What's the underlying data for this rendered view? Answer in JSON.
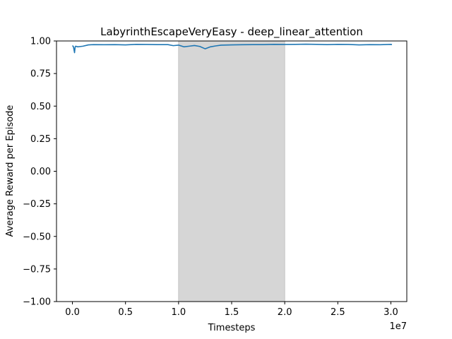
{
  "chart_data": {
    "type": "line",
    "title": "LabyrinthEscapeVeryEasy - deep_linear_attention",
    "xlabel": "Timesteps",
    "ylabel": "Average Reward per Episode",
    "x_offset_label": "1e7",
    "xlim": [
      -0.15,
      3.15
    ],
    "ylim": [
      -1.0,
      1.0
    ],
    "x_ticks": [
      0.0,
      0.5,
      1.0,
      1.5,
      2.0,
      2.5,
      3.0
    ],
    "x_tick_labels": [
      "0.0",
      "0.5",
      "1.0",
      "1.5",
      "2.0",
      "2.5",
      "3.0"
    ],
    "y_ticks": [
      -1.0,
      -0.75,
      -0.5,
      -0.25,
      0.0,
      0.25,
      0.5,
      0.75,
      1.0
    ],
    "y_tick_labels": [
      "−1.00",
      "−0.75",
      "−0.50",
      "−0.25",
      "0.00",
      "0.25",
      "0.50",
      "0.75",
      "1.00"
    ],
    "shaded_region": {
      "x": [
        1.0,
        2.0
      ],
      "color": "#d6d6d6"
    },
    "grid": false,
    "series": [
      {
        "color": "#1f77b4",
        "x": [
          0.0,
          0.01,
          0.02,
          0.025,
          0.03,
          0.05,
          0.08,
          0.1,
          0.15,
          0.2,
          0.3,
          0.4,
          0.5,
          0.6,
          0.7,
          0.8,
          0.9,
          0.95,
          1.0,
          1.05,
          1.1,
          1.15,
          1.2,
          1.25,
          1.3,
          1.35,
          1.4,
          1.5,
          1.6,
          1.7,
          1.8,
          1.9,
          2.0,
          2.1,
          2.2,
          2.3,
          2.4,
          2.5,
          2.6,
          2.7,
          2.8,
          2.9,
          3.0,
          3.01
        ],
        "y": [
          0.965,
          0.955,
          0.91,
          0.95,
          0.96,
          0.955,
          0.958,
          0.96,
          0.97,
          0.972,
          0.971,
          0.972,
          0.97,
          0.974,
          0.973,
          0.972,
          0.972,
          0.964,
          0.968,
          0.955,
          0.96,
          0.965,
          0.958,
          0.94,
          0.955,
          0.962,
          0.968,
          0.97,
          0.971,
          0.972,
          0.972,
          0.974,
          0.973,
          0.974,
          0.975,
          0.974,
          0.972,
          0.974,
          0.973,
          0.97,
          0.972,
          0.971,
          0.974,
          0.972
        ]
      }
    ]
  }
}
